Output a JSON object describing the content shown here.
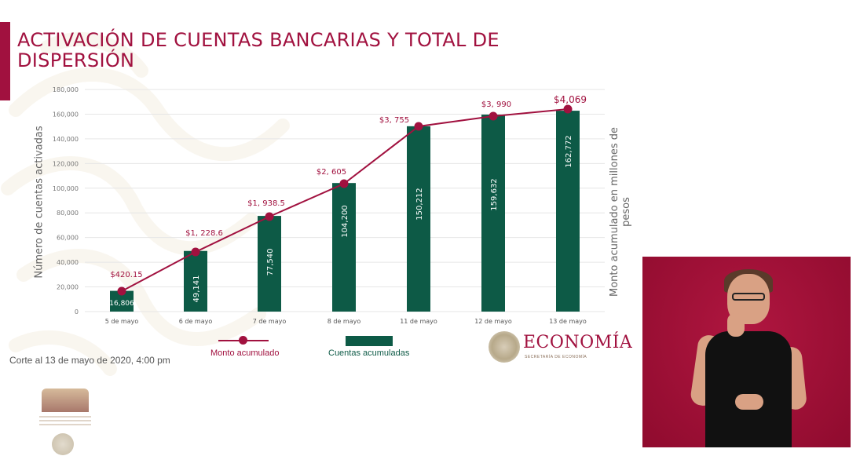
{
  "slide": {
    "title": "ACTIVACIÓN DE CUENTAS BANCARIAS Y TOTAL DE DISPERSIÓN",
    "footnote": "Corte al 13 de mayo de 2020, 4:00 pm",
    "colors": {
      "accent": "#a1113f",
      "bar": "#0d5a46",
      "line": "#a1113f",
      "grid": "#e6e6e6",
      "interpreter_bg": "#a10f35"
    },
    "logo": {
      "name": "ECONOMÍA",
      "subtitle": "SECRETARÍA DE ECONOMÍA",
      "seal_icon": "mexico-coat-of-arms-icon"
    },
    "bottom_logo_icon": "cuarta-transformacion-logo-icon",
    "interpreter": {
      "description": "sign-language-interpreter-video"
    }
  },
  "chart_data": {
    "type": "bar+line",
    "title": "ACTIVACIÓN DE CUENTAS BANCARIAS Y TOTAL DE DISPERSIÓN",
    "categories": [
      "5 de mayo",
      "6 de mayo",
      "7 de mayo",
      "8 de mayo",
      "11 de mayo",
      "12 de mayo",
      "13 de mayo"
    ],
    "series": [
      {
        "name": "Cuentas acumuladas",
        "type": "bar",
        "axis": "left",
        "values": [
          16806,
          49141,
          77540,
          104200,
          150212,
          159632,
          162772
        ],
        "labels": [
          "16,806",
          "49,141",
          "77,540",
          "104,200",
          "150,212",
          "159,632",
          "162,772"
        ]
      },
      {
        "name": "Monto acumulado",
        "type": "line",
        "axis": "right",
        "values": [
          420.15,
          1228.6,
          1938.5,
          2605,
          3755,
          3990,
          4069
        ],
        "labels": [
          "$420.15",
          "$1, 228.6",
          "$1, 938.5",
          "$2, 605",
          "$3, 755",
          "$3, 990",
          "$4,069"
        ]
      }
    ],
    "ylabel": "Número de cuentas activadas",
    "ylabel_right": "Monto acumulado en millones de pesos",
    "xlabel": "",
    "ylim": [
      0,
      180000
    ],
    "yticks": [
      "0",
      "20,000",
      "40,000",
      "60,000",
      "80,000",
      "100,000",
      "120,000",
      "140,000",
      "160,000",
      "180,000"
    ],
    "grid": true,
    "legend": {
      "position": "bottom",
      "entries": [
        "Monto acumulado",
        "Cuentas acumuladas"
      ]
    },
    "footnote": "Corte al 13 de mayo de 2020, 4:00 pm"
  }
}
